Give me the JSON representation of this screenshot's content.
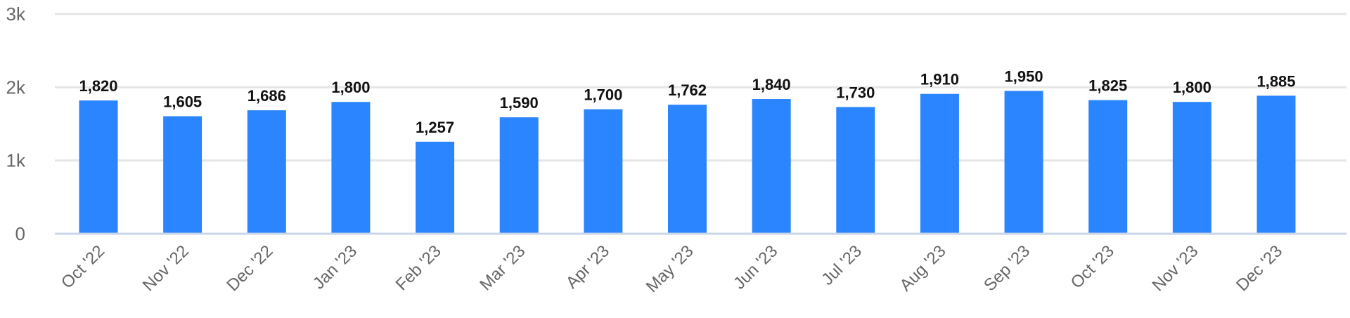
{
  "chart_data": {
    "type": "bar",
    "categories": [
      "Oct '22",
      "Nov '22",
      "Dec '22",
      "Jan '23",
      "Feb '23",
      "Mar '23",
      "Apr '23",
      "May '23",
      "Jun '23",
      "Jul '23",
      "Aug '23",
      "Sep '23",
      "Oct '23",
      "Nov '23",
      "Dec '23"
    ],
    "values": [
      1820,
      1605,
      1686,
      1800,
      1257,
      1590,
      1700,
      1762,
      1840,
      1730,
      1910,
      1950,
      1825,
      1800,
      1885
    ],
    "data_labels": [
      "1,820",
      "1,605",
      "1,686",
      "1,800",
      "1,257",
      "1,590",
      "1,700",
      "1,762",
      "1,840",
      "1,730",
      "1,910",
      "1,950",
      "1,825",
      "1,800",
      "1,885"
    ],
    "yticks": [
      0,
      1000,
      2000,
      3000
    ],
    "ytick_labels": [
      "0",
      "1k",
      "2k",
      "3k"
    ],
    "ylim": [
      0,
      3000
    ],
    "grid": true,
    "legend": "none",
    "bar_color": "#2b85ff",
    "grid_color": "#e6e6e6",
    "axis_color": "#c9d5ea"
  }
}
